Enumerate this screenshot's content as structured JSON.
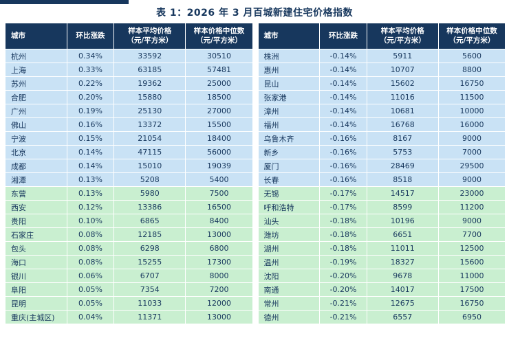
{
  "title": "表 1：2026 年 3 月百城新建住宅价格指数",
  "colors": {
    "header_bg": "#17375d",
    "row_blue": "#c9e2f5",
    "row_green": "#c9efd0",
    "text": "#17375d",
    "accent_bar": "#17375d"
  },
  "columns": [
    "城市",
    "环比涨跌",
    "样本平均价格\n（元/平方米）",
    "样本价格中位数\n（元/平方米）"
  ],
  "left_table": {
    "rows": [
      {
        "city": "杭州",
        "change": "0.34%",
        "avg": "33592",
        "median": "30510",
        "tone": "blue"
      },
      {
        "city": "上海",
        "change": "0.33%",
        "avg": "63185",
        "median": "57481",
        "tone": "blue"
      },
      {
        "city": "苏州",
        "change": "0.22%",
        "avg": "19362",
        "median": "25000",
        "tone": "blue"
      },
      {
        "city": "合肥",
        "change": "0.20%",
        "avg": "15880",
        "median": "18500",
        "tone": "blue"
      },
      {
        "city": "广州",
        "change": "0.19%",
        "avg": "25130",
        "median": "27000",
        "tone": "blue"
      },
      {
        "city": "佛山",
        "change": "0.16%",
        "avg": "13372",
        "median": "15500",
        "tone": "blue"
      },
      {
        "city": "宁波",
        "change": "0.15%",
        "avg": "21054",
        "median": "18400",
        "tone": "blue"
      },
      {
        "city": "北京",
        "change": "0.14%",
        "avg": "47115",
        "median": "56000",
        "tone": "blue"
      },
      {
        "city": "成都",
        "change": "0.14%",
        "avg": "15010",
        "median": "19039",
        "tone": "blue"
      },
      {
        "city": "湘潭",
        "change": "0.13%",
        "avg": "5208",
        "median": "5400",
        "tone": "blue"
      },
      {
        "city": "东营",
        "change": "0.13%",
        "avg": "5980",
        "median": "7500",
        "tone": "green"
      },
      {
        "city": "西安",
        "change": "0.12%",
        "avg": "13386",
        "median": "16500",
        "tone": "green"
      },
      {
        "city": "贵阳",
        "change": "0.10%",
        "avg": "6865",
        "median": "8400",
        "tone": "green"
      },
      {
        "city": "石家庄",
        "change": "0.08%",
        "avg": "12185",
        "median": "13000",
        "tone": "green"
      },
      {
        "city": "包头",
        "change": "0.08%",
        "avg": "6298",
        "median": "6800",
        "tone": "green"
      },
      {
        "city": "海口",
        "change": "0.08%",
        "avg": "15255",
        "median": "17300",
        "tone": "green"
      },
      {
        "city": "银川",
        "change": "0.06%",
        "avg": "6707",
        "median": "8000",
        "tone": "green"
      },
      {
        "city": "阜阳",
        "change": "0.05%",
        "avg": "7354",
        "median": "7200",
        "tone": "green"
      },
      {
        "city": "昆明",
        "change": "0.05%",
        "avg": "11033",
        "median": "12000",
        "tone": "green"
      },
      {
        "city": "重庆(主城区)",
        "change": "0.04%",
        "avg": "11371",
        "median": "13000",
        "tone": "green"
      }
    ]
  },
  "right_table": {
    "rows": [
      {
        "city": "株洲",
        "change": "-0.14%",
        "avg": "5911",
        "median": "5600",
        "tone": "blue"
      },
      {
        "city": "惠州",
        "change": "-0.14%",
        "avg": "10707",
        "median": "8800",
        "tone": "blue"
      },
      {
        "city": "昆山",
        "change": "-0.14%",
        "avg": "15602",
        "median": "16750",
        "tone": "blue"
      },
      {
        "city": "张家港",
        "change": "-0.14%",
        "avg": "11016",
        "median": "11500",
        "tone": "blue"
      },
      {
        "city": "漳州",
        "change": "-0.14%",
        "avg": "10681",
        "median": "10000",
        "tone": "blue"
      },
      {
        "city": "福州",
        "change": "-0.14%",
        "avg": "16768",
        "median": "16000",
        "tone": "blue"
      },
      {
        "city": "乌鲁木齐",
        "change": "-0.16%",
        "avg": "8167",
        "median": "9000",
        "tone": "blue"
      },
      {
        "city": "新乡",
        "change": "-0.16%",
        "avg": "5753",
        "median": "7000",
        "tone": "blue"
      },
      {
        "city": "厦门",
        "change": "-0.16%",
        "avg": "28469",
        "median": "29500",
        "tone": "blue"
      },
      {
        "city": "长春",
        "change": "-0.16%",
        "avg": "8518",
        "median": "9000",
        "tone": "blue"
      },
      {
        "city": "无锡",
        "change": "-0.17%",
        "avg": "14517",
        "median": "23000",
        "tone": "green"
      },
      {
        "city": "呼和浩特",
        "change": "-0.17%",
        "avg": "8599",
        "median": "11200",
        "tone": "green"
      },
      {
        "city": "汕头",
        "change": "-0.18%",
        "avg": "10196",
        "median": "9000",
        "tone": "green"
      },
      {
        "city": "潍坊",
        "change": "-0.18%",
        "avg": "6651",
        "median": "7700",
        "tone": "green"
      },
      {
        "city": "湖州",
        "change": "-0.18%",
        "avg": "11011",
        "median": "12500",
        "tone": "green"
      },
      {
        "city": "温州",
        "change": "-0.19%",
        "avg": "18327",
        "median": "15600",
        "tone": "green"
      },
      {
        "city": "沈阳",
        "change": "-0.20%",
        "avg": "9678",
        "median": "11000",
        "tone": "green"
      },
      {
        "city": "南通",
        "change": "-0.20%",
        "avg": "14017",
        "median": "17500",
        "tone": "green"
      },
      {
        "city": "常州",
        "change": "-0.21%",
        "avg": "12675",
        "median": "16750",
        "tone": "green"
      },
      {
        "city": "德州",
        "change": "-0.21%",
        "avg": "6557",
        "median": "6950",
        "tone": "green"
      }
    ]
  }
}
